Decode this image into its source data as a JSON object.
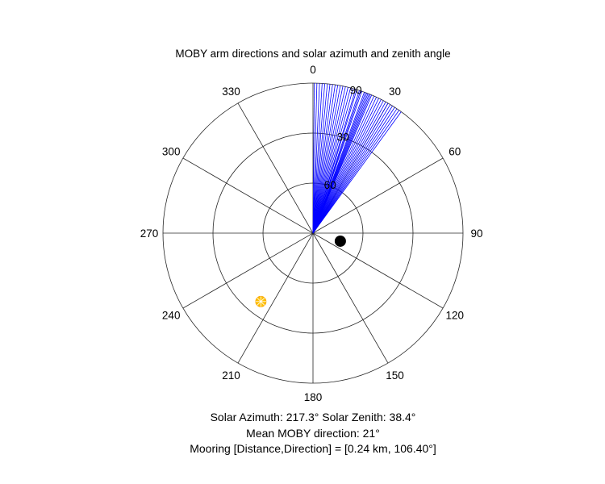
{
  "chart_data": {
    "type": "polar",
    "title": "MOBY arm directions and solar azimuth and zenith angle",
    "angle_zero": "top",
    "angle_direction": "clockwise",
    "angle_ticks": [
      0,
      30,
      60,
      90,
      120,
      150,
      180,
      210,
      240,
      270,
      300,
      330
    ],
    "radial_ticks": [
      "90",
      "60",
      "30"
    ],
    "radial_range": [
      0,
      90
    ],
    "radial_reversed": true,
    "grid": true,
    "series": [
      {
        "type": "line",
        "color": "#0000ff",
        "angles": [
          0.5,
          1.5,
          2.5,
          3.5,
          4.5,
          5.5,
          6.5,
          7.5,
          8.5,
          9.5,
          10.5,
          11.5,
          12.5,
          13.5,
          14.5,
          15.5,
          16.5,
          17,
          18,
          18.5,
          19,
          20,
          20.5,
          21,
          21.5,
          22,
          22.5,
          23,
          24,
          25,
          26,
          27,
          28,
          29,
          30,
          31,
          32,
          33,
          34,
          35,
          36
        ],
        "note_values": "each blue line runs from the center to the outer circle at the given arm direction (degrees)"
      },
      {
        "type": "point",
        "color": "#000000",
        "angle": 106.4,
        "radius_fraction": 0.19
      },
      {
        "type": "point",
        "color": "#ffc000",
        "angle": 217.3,
        "zenith": 38.4
      }
    ]
  },
  "footer": {
    "solar_line": "Solar Azimuth: 217.3°   Solar Zenith: 38.4°",
    "moby_line": "Mean MOBY direction: 21°",
    "mooring_line": "Mooring [Distance,Direction] = [0.24 km, 106.40°]"
  }
}
